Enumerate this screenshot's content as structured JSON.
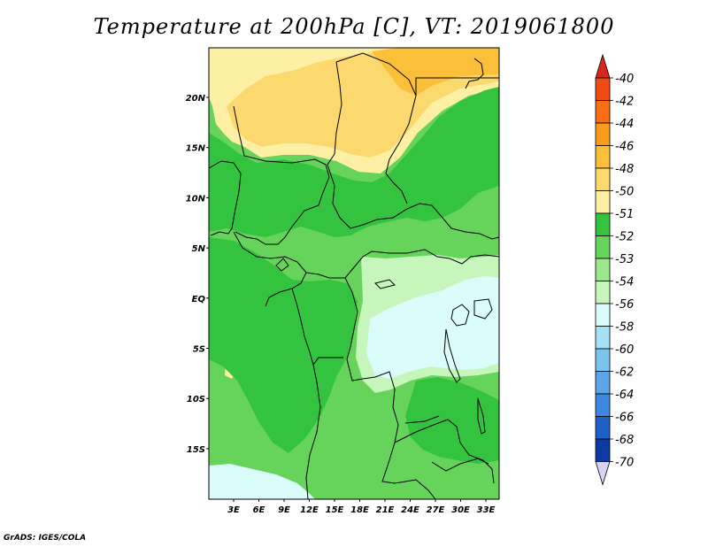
{
  "title": "Temperature at 200hPa [C], VT: 2019061800",
  "credit": "GrADS: IGES/COLA",
  "map": {
    "lat_labels": [
      "20N",
      "15N",
      "10N",
      "5N",
      "EQ",
      "5S",
      "10S",
      "15S"
    ],
    "lon_labels": [
      "3E",
      "6E",
      "9E",
      "12E",
      "15E",
      "18E",
      "21E",
      "24E",
      "27E",
      "30E",
      "33E"
    ]
  },
  "colorbar": {
    "labels": [
      "-40",
      "-42",
      "-44",
      "-46",
      "-48",
      "-50",
      "-51",
      "-52",
      "-53",
      "-54",
      "-56",
      "-58",
      "-60",
      "-62",
      "-64",
      "-66",
      "-68",
      "-70"
    ],
    "colors": [
      "#d8271c",
      "#f14a13",
      "#f86d15",
      "#f99c1e",
      "#fbbf3a",
      "#fcd96e",
      "#fdf0a5",
      "#34c33f",
      "#66d35a",
      "#9be78c",
      "#c7f6bc",
      "#dafcfa",
      "#a6e2f7",
      "#7ac4ef",
      "#5ba6e8",
      "#3e87e0",
      "#1f5fc8",
      "#0c3aa5",
      "#081d6d",
      "#d6d6f4"
    ]
  },
  "palette": {
    "yellow_dark": "#fbbf3a",
    "yellow": "#fcd96e",
    "yellow_light": "#fdf0a5",
    "green_dark": "#34c33f",
    "green": "#66d35a",
    "green_light": "#9be78c",
    "green_pale": "#c7f6bc",
    "cyan_pale": "#dafcfa"
  }
}
